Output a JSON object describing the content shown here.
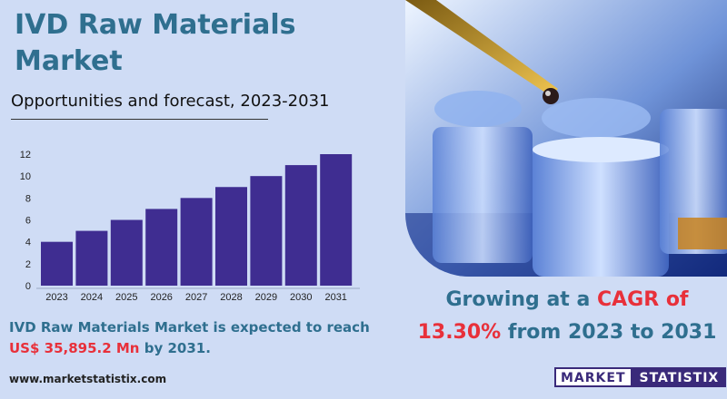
{
  "header": {
    "title": "IVD Raw Materials Market",
    "subtitle": "Opportunities and forecast, 2023-2031"
  },
  "chart_data": {
    "type": "bar",
    "categories": [
      "2023",
      "2024",
      "2025",
      "2026",
      "2027",
      "2028",
      "2029",
      "2030",
      "2031"
    ],
    "values": [
      4,
      5,
      6,
      7,
      8,
      9,
      10,
      11,
      12
    ],
    "ylim": [
      0,
      12
    ],
    "yticks": [
      0,
      2,
      4,
      6,
      8,
      10,
      12
    ],
    "grid": false,
    "bar_color": "#3f2d91"
  },
  "growth": {
    "prefix": "Growing at a ",
    "cagr_label": "CAGR of",
    "rate": "13.30%",
    "suffix": " from 2023 to 2031"
  },
  "reach": {
    "line1": "IVD Raw Materials Market is expected to reach",
    "value": "US$ 35,895.2 Mn",
    "suffix": " by 2031."
  },
  "footer": {
    "website": "www.marketstatistix.com",
    "logo_part1": "MARKET",
    "logo_part2": "STATISTIX"
  },
  "colors": {
    "title": "#2f6f8f",
    "accent": "#e8303a",
    "background": "#cfdcf5",
    "brand": "#3a2a7a"
  }
}
